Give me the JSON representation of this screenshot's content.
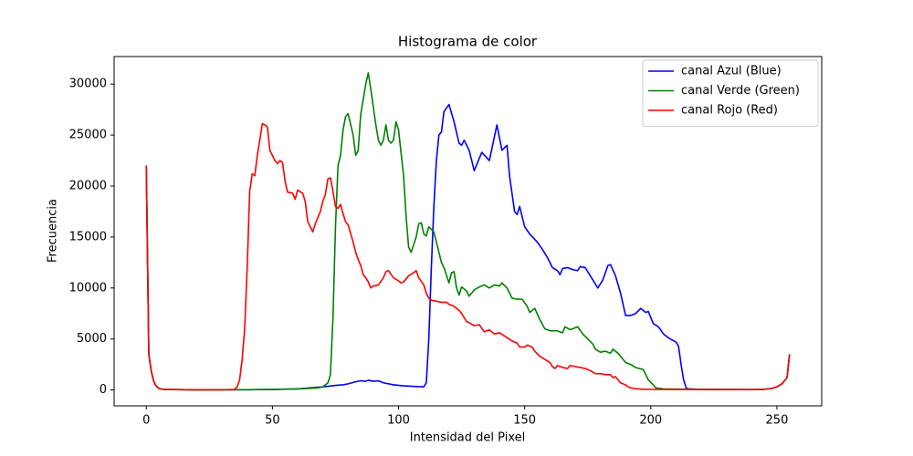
{
  "chart_data": {
    "type": "line",
    "title": "Histograma de color",
    "x_label": "Intensidad del Pixel",
    "y_label": "Frecuencia",
    "xlim": [
      -12.75,
      267.75
    ],
    "ylim": [
      -1560,
      32700
    ],
    "xticks": [
      0,
      50,
      100,
      150,
      200,
      250
    ],
    "yticks": [
      0,
      5000,
      10000,
      15000,
      20000,
      25000,
      30000
    ],
    "grid": false,
    "legend": "upper right",
    "series": [
      {
        "name": "canal Azul (Blue)",
        "color": "#0000ff",
        "x": [
          0,
          1,
          2,
          3,
          4,
          5,
          6,
          8,
          20,
          40,
          50,
          60,
          65,
          70,
          75,
          78,
          80,
          83,
          85,
          87,
          88,
          90,
          92,
          94,
          98,
          102,
          106,
          110,
          111,
          112,
          113,
          114,
          115,
          116,
          117,
          118,
          120,
          122,
          124,
          125,
          126,
          128,
          130,
          133,
          136,
          139,
          141,
          143,
          144,
          146,
          147,
          148,
          150,
          152,
          155,
          157,
          159,
          161,
          163,
          164,
          165,
          167,
          169,
          171,
          172,
          174,
          177,
          179,
          181,
          183,
          184,
          186,
          188,
          190,
          192,
          194,
          196,
          198,
          199,
          201,
          203,
          205,
          207,
          210,
          211,
          212,
          213,
          214,
          215,
          220,
          230,
          240,
          245,
          248,
          250,
          252,
          254,
          255
        ],
        "values": [
          22000,
          3500,
          1800,
          800,
          350,
          150,
          80,
          40,
          10,
          20,
          40,
          100,
          200,
          300,
          450,
          500,
          600,
          800,
          900,
          850,
          950,
          850,
          900,
          700,
          500,
          400,
          350,
          300,
          700,
          5000,
          12000,
          18000,
          22500,
          25000,
          25300,
          27300,
          28000,
          26300,
          24200,
          24000,
          24500,
          23500,
          21500,
          23300,
          22500,
          26000,
          23500,
          24000,
          21000,
          17500,
          17200,
          18000,
          16000,
          15300,
          14500,
          13800,
          13000,
          12000,
          11700,
          11300,
          11900,
          12000,
          11800,
          11700,
          12100,
          12000,
          10800,
          10000,
          10800,
          12200,
          12300,
          11200,
          9500,
          7300,
          7300,
          7500,
          8000,
          7600,
          7700,
          6500,
          6200,
          5500,
          5100,
          4700,
          4300,
          2500,
          1000,
          200,
          100,
          60,
          40,
          30,
          60,
          150,
          300,
          600,
          1200,
          3500
        ]
      },
      {
        "name": "canal Verde (Green)",
        "color": "#008000",
        "x": [
          0,
          1,
          2,
          3,
          4,
          5,
          6,
          8,
          20,
          40,
          50,
          60,
          65,
          68,
          70,
          72,
          73,
          74,
          75,
          76,
          77,
          78,
          79,
          80,
          82,
          83,
          84,
          85,
          87,
          88,
          89,
          91,
          92,
          93,
          94,
          95,
          96,
          97,
          98,
          99,
          100,
          102,
          103,
          104,
          105,
          107,
          108,
          109,
          110,
          111,
          112,
          114,
          115,
          117,
          118,
          120,
          121,
          122,
          123,
          124,
          125,
          127,
          128,
          130,
          132,
          134,
          136,
          138,
          140,
          141,
          143,
          145,
          147,
          149,
          151,
          152,
          154,
          156,
          158,
          160,
          163,
          165,
          166,
          168,
          170,
          171,
          173,
          175,
          177,
          178,
          180,
          182,
          184,
          185,
          187,
          188,
          190,
          192,
          194,
          197,
          198,
          199,
          201,
          202,
          205,
          210,
          220,
          230,
          240,
          245,
          248,
          250,
          252,
          254,
          255
        ],
        "values": [
          22000,
          3500,
          1800,
          800,
          350,
          150,
          80,
          40,
          10,
          20,
          50,
          100,
          150,
          200,
          300,
          700,
          1500,
          7000,
          16000,
          22000,
          23000,
          25500,
          26800,
          27100,
          25000,
          23000,
          23500,
          27000,
          30000,
          31100,
          29500,
          26000,
          24500,
          24000,
          24500,
          26000,
          24500,
          24200,
          24500,
          26300,
          25500,
          21000,
          17000,
          14000,
          13500,
          15000,
          16300,
          16400,
          15300,
          15100,
          16000,
          15500,
          14500,
          12500,
          12000,
          10500,
          11500,
          11600,
          10000,
          9300,
          10100,
          9700,
          9200,
          9800,
          10100,
          10300,
          10000,
          10300,
          10200,
          10500,
          10000,
          9000,
          8900,
          8900,
          8200,
          7600,
          8000,
          6900,
          6000,
          5800,
          5800,
          5600,
          6200,
          5900,
          6100,
          6200,
          5500,
          5000,
          4500,
          4000,
          3700,
          3800,
          3600,
          4000,
          3600,
          3300,
          2700,
          2500,
          2200,
          2000,
          1500,
          1000,
          500,
          200,
          100,
          80,
          60,
          40,
          30,
          60,
          150,
          300,
          600,
          1200,
          3500
        ]
      },
      {
        "name": "canal Rojo (Red)",
        "color": "#ff0000",
        "x": [
          0,
          1,
          2,
          3,
          4,
          5,
          6,
          8,
          20,
          30,
          35,
          36,
          37,
          38,
          39,
          40,
          41,
          42,
          43,
          44,
          45,
          46,
          47,
          48,
          49,
          50,
          51,
          52,
          53,
          54,
          55,
          56,
          58,
          59,
          60,
          62,
          63,
          64,
          65,
          66,
          67,
          69,
          70,
          71,
          72,
          73,
          74,
          75,
          76,
          77,
          78,
          79,
          80,
          82,
          83,
          84,
          85,
          86,
          87,
          88,
          89,
          90,
          92,
          94,
          95,
          96,
          98,
          100,
          101,
          102,
          104,
          106,
          107,
          108,
          110,
          111,
          112,
          113,
          115,
          117,
          119,
          120,
          122,
          124,
          125,
          127,
          128,
          130,
          132,
          134,
          136,
          138,
          140,
          142,
          145,
          147,
          148,
          150,
          151,
          153,
          154,
          156,
          158,
          160,
          161,
          162,
          163,
          165,
          167,
          168,
          170,
          172,
          174,
          176,
          178,
          180,
          182,
          184,
          185,
          186,
          188,
          190,
          191,
          193,
          196,
          200,
          210,
          220,
          230,
          240,
          245,
          248,
          250,
          252,
          254,
          255
        ],
        "values": [
          22000,
          3500,
          1800,
          800,
          350,
          150,
          80,
          40,
          10,
          10,
          50,
          300,
          1000,
          3000,
          6000,
          12000,
          19500,
          21200,
          21000,
          23000,
          24500,
          26100,
          26000,
          25800,
          23500,
          23000,
          22500,
          22200,
          22500,
          22300,
          20500,
          19400,
          19300,
          18700,
          19600,
          19300,
          18500,
          16500,
          16000,
          15500,
          16300,
          17500,
          18500,
          19200,
          20700,
          20800,
          19500,
          18000,
          17800,
          18200,
          17300,
          16500,
          16200,
          14500,
          13500,
          12800,
          12200,
          11300,
          11000,
          10600,
          10000,
          10200,
          10300,
          11000,
          11600,
          11700,
          11000,
          10700,
          10500,
          10600,
          11200,
          11500,
          11700,
          11000,
          10300,
          9500,
          9000,
          8800,
          8700,
          8600,
          8600,
          8400,
          8200,
          7800,
          7500,
          6700,
          6600,
          6300,
          6400,
          5700,
          5900,
          5500,
          5600,
          5300,
          4800,
          4600,
          4200,
          4200,
          4400,
          4200,
          3800,
          3300,
          3000,
          2700,
          2300,
          2100,
          2400,
          2200,
          2100,
          2400,
          2300,
          2200,
          2100,
          1900,
          1600,
          1600,
          1500,
          1500,
          1200,
          1300,
          700,
          500,
          300,
          150,
          80,
          50,
          40,
          40,
          30,
          30,
          60,
          150,
          300,
          600,
          1200,
          3500
        ]
      }
    ]
  }
}
